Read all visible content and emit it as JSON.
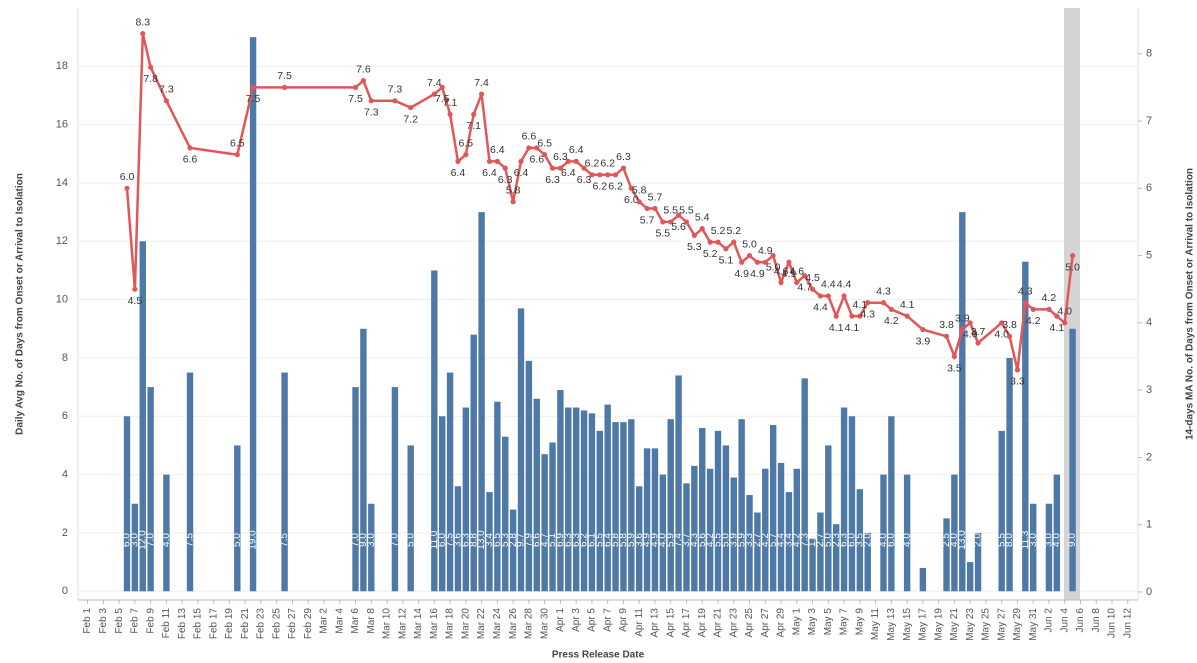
{
  "chart_data": {
    "type": "bar_line",
    "x_label": "Press Release Date",
    "y_label": "Daily Avg No. of Days from Onset or Arrival to Isolation",
    "y2_label": "14-days MA No. of Days from Onset or Arrival to Isolation",
    "ylim": [
      -0.3,
      20
    ],
    "yticks": [
      0,
      2,
      4,
      6,
      8,
      10,
      12,
      14,
      16,
      18
    ],
    "y2lim": [
      -0.12,
      8.68
    ],
    "y2ticks": [
      0,
      1,
      2,
      3,
      4,
      5,
      6,
      7,
      8
    ],
    "grid": true,
    "categories": [
      "Feb 1",
      null,
      "Feb 3",
      null,
      "Feb 5",
      null,
      "Feb 7",
      null,
      "Feb 9",
      null,
      "Feb 11",
      null,
      "Feb 13",
      null,
      "Feb 15",
      null,
      "Feb 17",
      null,
      "Feb 19",
      null,
      "Feb 21",
      null,
      "Feb 23",
      null,
      "Feb 25",
      null,
      "Feb 27",
      null,
      "Feb 29",
      null,
      "Mar 2",
      null,
      "Mar 4",
      null,
      "Mar 6",
      null,
      "Mar 8",
      null,
      "Mar 10",
      null,
      "Mar 12",
      null,
      "Mar 14",
      null,
      "Mar 16",
      null,
      "Mar 18",
      null,
      "Mar 20",
      null,
      "Mar 22",
      null,
      "Mar 24",
      null,
      "Mar 26",
      null,
      "Mar 28",
      null,
      "Mar 30",
      null,
      "Apr 1",
      null,
      "Apr 3",
      null,
      "Apr 5",
      null,
      "Apr 7",
      null,
      "Apr 9",
      null,
      "Apr 11",
      null,
      "Apr 13",
      null,
      "Apr 15",
      null,
      "Apr 17",
      null,
      "Apr 19",
      null,
      "Apr 21",
      null,
      "Apr 23",
      null,
      "Apr 25",
      null,
      "Apr 27",
      null,
      "Apr 29",
      null,
      "May 1",
      null,
      "May 3",
      null,
      "May 5",
      null,
      "May 7",
      null,
      "May 9",
      null,
      "May 11",
      null,
      "May 13",
      null,
      "May 15",
      null,
      "May 17",
      null,
      "May 19",
      null,
      "May 21",
      null,
      "May 23",
      null,
      "May 25",
      null,
      "May 27",
      null,
      "May 29",
      null,
      "May 31",
      null,
      "Jun 2",
      null,
      "Jun 4",
      null,
      "Jun 6",
      null,
      "Jun 8",
      null,
      "Jun 10",
      null,
      "Jun 12"
    ],
    "series": [
      {
        "type": "bar",
        "color": "#4e79a7",
        "values": [
          null,
          null,
          null,
          null,
          null,
          6,
          3,
          12,
          7,
          null,
          4,
          null,
          null,
          7.5,
          null,
          null,
          null,
          null,
          null,
          5,
          null,
          19,
          null,
          null,
          null,
          7.5,
          null,
          null,
          null,
          null,
          null,
          null,
          null,
          null,
          7,
          9,
          3,
          null,
          null,
          7,
          null,
          5,
          null,
          null,
          11,
          6,
          7.5,
          3.6,
          6.3,
          8.8,
          13,
          3.4,
          6.5,
          5.3,
          2.8,
          9.7,
          7.9,
          6.6,
          4.7,
          5.1,
          6.9,
          6.3,
          6.3,
          6.2,
          6.1,
          5.5,
          6.4,
          5.8,
          5.8,
          5.9,
          3.6,
          4.9,
          4.9,
          4,
          5.9,
          7.4,
          3.7,
          4.3,
          5.6,
          4.2,
          5.5,
          5,
          3.9,
          5.9,
          3.3,
          2.7,
          4.2,
          5.7,
          4.4,
          3.4,
          4.2,
          7.3,
          1.8,
          2.7,
          5,
          2.3,
          6.3,
          6,
          3.5,
          2,
          null,
          4,
          6,
          null,
          4,
          null,
          0.8,
          null,
          null,
          2.5,
          4,
          13,
          1,
          2,
          null,
          null,
          5.5,
          8,
          null,
          11.3,
          3,
          null,
          3,
          4,
          null,
          9,
          null,
          null,
          null,
          null,
          null,
          null,
          null
        ],
        "value_labels": [
          null,
          null,
          null,
          null,
          null,
          "6.0",
          "3.0",
          "12.0",
          "7.0",
          null,
          "4.0",
          null,
          null,
          "7.5",
          null,
          null,
          null,
          null,
          null,
          "5.0",
          null,
          "19.0",
          null,
          null,
          null,
          "7.5",
          null,
          null,
          null,
          null,
          null,
          null,
          null,
          null,
          "7.0",
          "9.0",
          "3.0",
          null,
          null,
          "7.0",
          null,
          "5.0",
          null,
          null,
          "11.0",
          "6.0",
          "7.5",
          "3.6",
          "6.3",
          "8.8",
          "13.0",
          "3.4",
          "6.5",
          "5.3",
          "2.8",
          "9.7",
          "7.9",
          "6.6",
          "4.7",
          "5.1",
          "6.9",
          "6.3",
          "6.3",
          "6.2",
          "6.1",
          "5.5",
          "6.4",
          "5.8",
          "5.8",
          "5.9",
          "3.6",
          "4.9",
          "4.9",
          "4.0",
          "5.9",
          "7.4",
          "3.7",
          "4.3",
          "5.6",
          "4.2",
          "5.5",
          "5.0",
          "3.9",
          "5.9",
          "3.3",
          "2.7",
          "4.2",
          "5.7",
          "4.4",
          "3.4",
          "4.2",
          "7.3",
          "1.8",
          "2.7",
          "5.0",
          "2.3",
          "6.3",
          "6.0",
          "3.5",
          "2.0",
          null,
          "4.0",
          "6.0",
          null,
          "4.0",
          null,
          "0.8",
          null,
          null,
          "2.5",
          "4.0",
          "13.0",
          "1.0",
          "2.0",
          null,
          null,
          "5.5",
          "8.0",
          null,
          "11.3",
          "3.0",
          null,
          "3.0",
          "4.0",
          null,
          "9.0",
          null,
          null,
          null,
          null,
          null,
          null,
          null
        ]
      },
      {
        "type": "line",
        "axis": "y2",
        "color": "#e15759",
        "values": [
          null,
          null,
          null,
          null,
          null,
          6.0,
          4.5,
          8.3,
          7.8,
          null,
          7.3,
          null,
          null,
          6.6,
          null,
          null,
          null,
          null,
          null,
          6.5,
          null,
          7.5,
          null,
          null,
          null,
          7.5,
          null,
          null,
          null,
          null,
          null,
          null,
          null,
          null,
          7.5,
          7.6,
          7.3,
          null,
          null,
          7.3,
          null,
          7.2,
          null,
          null,
          7.4,
          7.5,
          7.1,
          6.4,
          6.5,
          7.1,
          7.4,
          6.4,
          6.4,
          6.3,
          5.8,
          6.4,
          6.6,
          6.6,
          6.5,
          6.3,
          6.3,
          6.4,
          6.4,
          6.3,
          6.2,
          6.2,
          6.2,
          6.2,
          6.3,
          6.0,
          5.8,
          5.7,
          5.7,
          5.5,
          5.5,
          5.6,
          5.5,
          5.3,
          5.4,
          5.2,
          5.2,
          5.1,
          5.2,
          4.9,
          5.0,
          4.9,
          4.9,
          5.0,
          4.6,
          4.9,
          4.6,
          4.7,
          4.5,
          4.4,
          4.4,
          4.1,
          4.4,
          4.1,
          4.1,
          4.3,
          null,
          4.3,
          4.2,
          null,
          4.1,
          null,
          3.9,
          null,
          null,
          3.8,
          3.5,
          3.9,
          4.0,
          3.7,
          null,
          null,
          4.0,
          3.8,
          3.3,
          4.3,
          4.2,
          null,
          4.2,
          4.1,
          4.0,
          5.0,
          null,
          null,
          null,
          null,
          null,
          null,
          null
        ],
        "value_labels": [
          null,
          null,
          null,
          null,
          null,
          "6.0",
          "4.5",
          "8.3",
          "7.8",
          null,
          "7.3",
          null,
          null,
          "6.6",
          null,
          null,
          null,
          null,
          null,
          "6.5",
          null,
          "7.5",
          null,
          null,
          null,
          "7.5",
          null,
          null,
          null,
          null,
          null,
          null,
          null,
          null,
          "7.5",
          "7.6",
          "7.3",
          null,
          null,
          "7.3",
          null,
          "7.2",
          null,
          null,
          "7.4",
          "7.5",
          "7.1",
          "6.4",
          "6.5",
          "7.1",
          "7.4",
          "6.4",
          "6.4",
          "6.3",
          "5.8",
          "6.4",
          "6.6",
          "6.6",
          "6.5",
          "6.3",
          "6.3",
          "6.4",
          "6.4",
          "6.3",
          "6.2",
          "6.2",
          "6.2",
          "6.2",
          "6.3",
          "6.0",
          "5.8",
          "5.7",
          "5.7",
          "5.5",
          "5.5",
          "5.6",
          "5.5",
          "5.3",
          "5.4",
          "5.2",
          "5.2",
          "5.1",
          "5.2",
          "4.9",
          "5.0",
          "4.9",
          "4.9",
          "5.0",
          "4.6",
          "4.9",
          "4.6",
          "4.7",
          "4.5",
          "4.4",
          "4.4",
          "4.1",
          "4.4",
          "4.1",
          "4.1",
          "4.3",
          null,
          "4.3",
          "4.2",
          null,
          "4.1",
          null,
          "3.9",
          null,
          null,
          "3.8",
          "3.5",
          "3.9",
          "4.0",
          "3.7",
          null,
          null,
          "4.0",
          "3.8",
          "3.3",
          "4.3",
          "4.2",
          null,
          "4.2",
          "4.1",
          "4.0",
          "5.0",
          null,
          null,
          null,
          null,
          null,
          null,
          null
        ]
      }
    ]
  }
}
